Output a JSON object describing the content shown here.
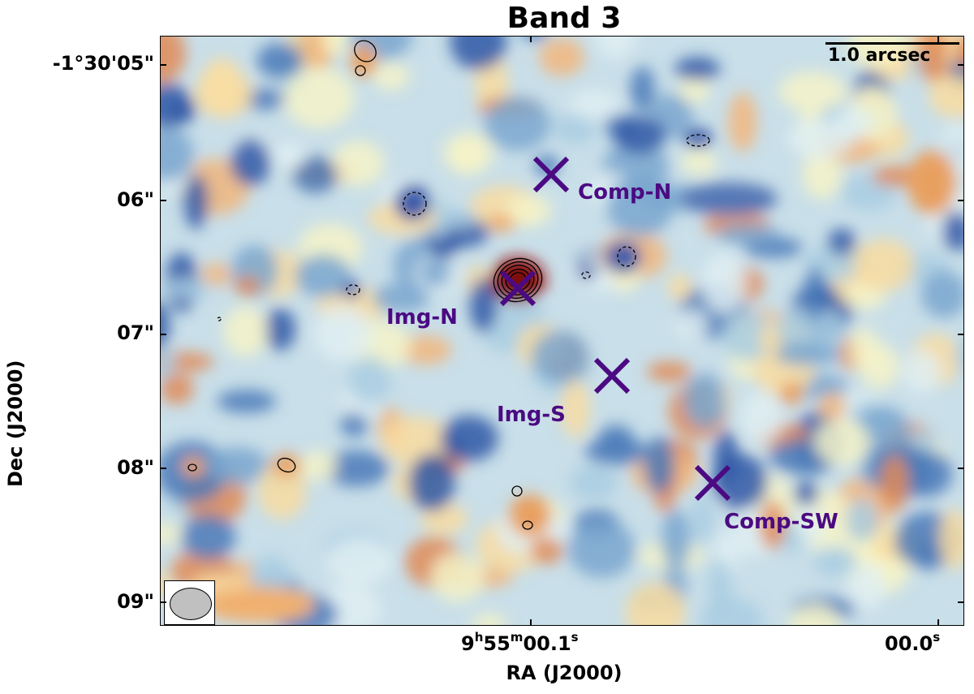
{
  "title": "Band 3",
  "axes": {
    "xlabel": "RA (J2000)",
    "ylabel": "Dec (J2000)",
    "yticks": [
      "-1°30'05\"",
      "06\"",
      "07\"",
      "08\"",
      "09\""
    ],
    "xticks": [
      {
        "main": "9",
        "h": "h",
        "mid": "55",
        "m": "m",
        "sec": "00.1",
        "s": "s"
      },
      {
        "main": "",
        "h": "",
        "mid": "",
        "m": "",
        "sec": "00.0",
        "s": "s"
      }
    ]
  },
  "scalebar": {
    "label": "1.0 arcsec"
  },
  "sources": [
    {
      "label": "Comp-N"
    },
    {
      "label": "Img-N"
    },
    {
      "label": "Img-S"
    },
    {
      "label": "Comp-SW"
    }
  ],
  "colors": {
    "marker": "#4b0a82",
    "cold": "#3a5aa8",
    "neutral": "#f6f3c8",
    "warm": "#e8a060",
    "peak": "#a01818"
  },
  "colormap": "RdYlBu_r",
  "beam": "ellipse"
}
